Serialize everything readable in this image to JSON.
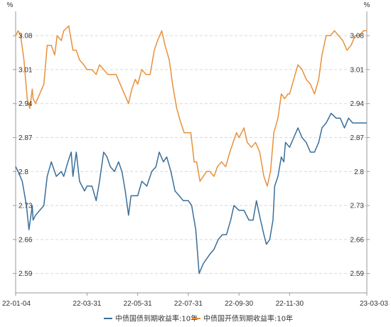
{
  "chart_data": {
    "type": "line",
    "y_unit_left": "%",
    "y_unit_right": "%",
    "ylim": [
      2.55,
      3.13
    ],
    "y_ticks": [
      2.59,
      2.66,
      2.73,
      2.8,
      2.87,
      2.94,
      3.01,
      3.08
    ],
    "y_tick_labels": [
      "2.59",
      "2.66",
      "2.73",
      "2.8",
      "2.87",
      "2.94",
      "3.01",
      "3.08"
    ],
    "x_tick_labels": [
      "22-01-04",
      "22-03-31",
      "22-05-31",
      "22-07-31",
      "22-09-30",
      "22-11-30",
      "23-03-03"
    ],
    "x_tick_dates": [
      "2022-01-04",
      "2022-03-31",
      "2022-05-31",
      "2022-07-31",
      "2022-09-30",
      "2022-11-30",
      "2023-03-03"
    ],
    "grid": true,
    "grid_axis": "y",
    "legend_position": "bottom",
    "series": [
      {
        "name": "中债国债到期收益率:10年",
        "color": "#3a6e9a",
        "points": [
          [
            "2022-01-04",
            2.81
          ],
          [
            "2022-01-07",
            2.8
          ],
          [
            "2022-01-12",
            2.78
          ],
          [
            "2022-01-17",
            2.73
          ],
          [
            "2022-01-20",
            2.68
          ],
          [
            "2022-01-24",
            2.73
          ],
          [
            "2022-01-25",
            2.7
          ],
          [
            "2022-01-28",
            2.71
          ],
          [
            "2022-02-07",
            2.73
          ],
          [
            "2022-02-11",
            2.79
          ],
          [
            "2022-02-16",
            2.82
          ],
          [
            "2022-02-22",
            2.79
          ],
          [
            "2022-02-28",
            2.8
          ],
          [
            "2022-03-03",
            2.79
          ],
          [
            "2022-03-08",
            2.82
          ],
          [
            "2022-03-12",
            2.84
          ],
          [
            "2022-03-14",
            2.79
          ],
          [
            "2022-03-18",
            2.84
          ],
          [
            "2022-03-22",
            2.78
          ],
          [
            "2022-03-28",
            2.76
          ],
          [
            "2022-03-31",
            2.77
          ],
          [
            "2022-04-06",
            2.77
          ],
          [
            "2022-04-11",
            2.74
          ],
          [
            "2022-04-15",
            2.78
          ],
          [
            "2022-04-20",
            2.84
          ],
          [
            "2022-04-24",
            2.83
          ],
          [
            "2022-04-28",
            2.81
          ],
          [
            "2022-05-03",
            2.8
          ],
          [
            "2022-05-08",
            2.82
          ],
          [
            "2022-05-12",
            2.8
          ],
          [
            "2022-05-16",
            2.76
          ],
          [
            "2022-05-20",
            2.71
          ],
          [
            "2022-05-23",
            2.75
          ],
          [
            "2022-05-27",
            2.75
          ],
          [
            "2022-05-31",
            2.75
          ],
          [
            "2022-06-05",
            2.78
          ],
          [
            "2022-06-11",
            2.77
          ],
          [
            "2022-06-17",
            2.8
          ],
          [
            "2022-06-22",
            2.81
          ],
          [
            "2022-06-26",
            2.84
          ],
          [
            "2022-07-01",
            2.82
          ],
          [
            "2022-07-05",
            2.83
          ],
          [
            "2022-07-10",
            2.8
          ],
          [
            "2022-07-15",
            2.76
          ],
          [
            "2022-07-20",
            2.75
          ],
          [
            "2022-07-25",
            2.74
          ],
          [
            "2022-07-31",
            2.74
          ],
          [
            "2022-08-04",
            2.73
          ],
          [
            "2022-08-09",
            2.68
          ],
          [
            "2022-08-13",
            2.59
          ],
          [
            "2022-08-18",
            2.61
          ],
          [
            "2022-08-22",
            2.62
          ],
          [
            "2022-08-26",
            2.63
          ],
          [
            "2022-08-31",
            2.64
          ],
          [
            "2022-09-05",
            2.66
          ],
          [
            "2022-09-10",
            2.67
          ],
          [
            "2022-09-15",
            2.67
          ],
          [
            "2022-09-20",
            2.7
          ],
          [
            "2022-09-24",
            2.73
          ],
          [
            "2022-09-30",
            2.72
          ],
          [
            "2022-10-06",
            2.72
          ],
          [
            "2022-10-12",
            2.7
          ],
          [
            "2022-10-17",
            2.7
          ],
          [
            "2022-10-21",
            2.74
          ],
          [
            "2022-10-26",
            2.7
          ],
          [
            "2022-10-30",
            2.67
          ],
          [
            "2022-11-02",
            2.65
          ],
          [
            "2022-11-06",
            2.66
          ],
          [
            "2022-11-10",
            2.7
          ],
          [
            "2022-11-12",
            2.77
          ],
          [
            "2022-11-16",
            2.79
          ],
          [
            "2022-11-20",
            2.83
          ],
          [
            "2022-11-23",
            2.82
          ],
          [
            "2022-11-25",
            2.86
          ],
          [
            "2022-11-30",
            2.85
          ],
          [
            "2022-12-05",
            2.87
          ],
          [
            "2022-12-10",
            2.89
          ],
          [
            "2022-12-15",
            2.87
          ],
          [
            "2022-12-20",
            2.86
          ],
          [
            "2022-12-25",
            2.84
          ],
          [
            "2022-12-30",
            2.84
          ],
          [
            "2023-01-04",
            2.86
          ],
          [
            "2023-01-08",
            2.89
          ],
          [
            "2023-01-13",
            2.9
          ],
          [
            "2023-01-19",
            2.92
          ],
          [
            "2023-01-25",
            2.91
          ],
          [
            "2023-01-30",
            2.91
          ],
          [
            "2023-02-04",
            2.89
          ],
          [
            "2023-02-09",
            2.91
          ],
          [
            "2023-02-14",
            2.9
          ],
          [
            "2023-02-20",
            2.9
          ],
          [
            "2023-02-24",
            2.9
          ],
          [
            "2023-03-01",
            2.9
          ],
          [
            "2023-03-03",
            2.9
          ]
        ]
      },
      {
        "name": "中债国开债到期收益率:10年",
        "color": "#e8913a",
        "points": [
          [
            "2022-01-04",
            3.08
          ],
          [
            "2022-01-07",
            3.09
          ],
          [
            "2022-01-10",
            3.08
          ],
          [
            "2022-01-14",
            3.03
          ],
          [
            "2022-01-18",
            2.95
          ],
          [
            "2022-01-21",
            2.93
          ],
          [
            "2022-01-24",
            2.97
          ],
          [
            "2022-01-25",
            2.95
          ],
          [
            "2022-01-28",
            2.94
          ],
          [
            "2022-02-07",
            2.98
          ],
          [
            "2022-02-11",
            3.06
          ],
          [
            "2022-02-16",
            3.06
          ],
          [
            "2022-02-20",
            3.04
          ],
          [
            "2022-02-23",
            3.08
          ],
          [
            "2022-02-28",
            3.07
          ],
          [
            "2022-03-03",
            3.09
          ],
          [
            "2022-03-09",
            3.1
          ],
          [
            "2022-03-14",
            3.05
          ],
          [
            "2022-03-18",
            3.05
          ],
          [
            "2022-03-22",
            3.03
          ],
          [
            "2022-03-27",
            3.02
          ],
          [
            "2022-03-31",
            3.01
          ],
          [
            "2022-04-06",
            3.01
          ],
          [
            "2022-04-11",
            3.0
          ],
          [
            "2022-04-15",
            3.02
          ],
          [
            "2022-04-20",
            3.01
          ],
          [
            "2022-04-25",
            3.0
          ],
          [
            "2022-04-30",
            3.0
          ],
          [
            "2022-05-05",
            3.0
          ],
          [
            "2022-05-10",
            2.98
          ],
          [
            "2022-05-15",
            2.96
          ],
          [
            "2022-05-20",
            2.94
          ],
          [
            "2022-05-24",
            2.97
          ],
          [
            "2022-05-28",
            2.99
          ],
          [
            "2022-05-31",
            2.98
          ],
          [
            "2022-06-05",
            3.01
          ],
          [
            "2022-06-10",
            3.0
          ],
          [
            "2022-06-15",
            3.0
          ],
          [
            "2022-06-20",
            3.05
          ],
          [
            "2022-06-24",
            3.07
          ],
          [
            "2022-06-29",
            3.09
          ],
          [
            "2022-07-03",
            3.06
          ],
          [
            "2022-07-08",
            3.03
          ],
          [
            "2022-07-12",
            2.98
          ],
          [
            "2022-07-17",
            2.93
          ],
          [
            "2022-07-22",
            2.9
          ],
          [
            "2022-07-26",
            2.88
          ],
          [
            "2022-07-31",
            2.88
          ],
          [
            "2022-08-03",
            2.88
          ],
          [
            "2022-08-07",
            2.82
          ],
          [
            "2022-08-10",
            2.82
          ],
          [
            "2022-08-14",
            2.78
          ],
          [
            "2022-08-18",
            2.79
          ],
          [
            "2022-08-22",
            2.8
          ],
          [
            "2022-08-26",
            2.8
          ],
          [
            "2022-08-31",
            2.79
          ],
          [
            "2022-09-04",
            2.81
          ],
          [
            "2022-09-09",
            2.82
          ],
          [
            "2022-09-14",
            2.81
          ],
          [
            "2022-09-19",
            2.84
          ],
          [
            "2022-09-23",
            2.86
          ],
          [
            "2022-09-27",
            2.88
          ],
          [
            "2022-09-30",
            2.87
          ],
          [
            "2022-10-06",
            2.89
          ],
          [
            "2022-10-10",
            2.86
          ],
          [
            "2022-10-15",
            2.85
          ],
          [
            "2022-10-20",
            2.86
          ],
          [
            "2022-10-25",
            2.84
          ],
          [
            "2022-10-30",
            2.79
          ],
          [
            "2022-11-03",
            2.77
          ],
          [
            "2022-11-07",
            2.8
          ],
          [
            "2022-11-11",
            2.88
          ],
          [
            "2022-11-16",
            2.91
          ],
          [
            "2022-11-20",
            2.96
          ],
          [
            "2022-11-24",
            2.95
          ],
          [
            "2022-11-28",
            2.96
          ],
          [
            "2022-11-30",
            2.96
          ],
          [
            "2022-12-05",
            2.99
          ],
          [
            "2022-12-10",
            3.02
          ],
          [
            "2022-12-15",
            3.01
          ],
          [
            "2022-12-20",
            2.99
          ],
          [
            "2022-12-25",
            2.98
          ],
          [
            "2022-12-30",
            2.96
          ],
          [
            "2023-01-04",
            2.99
          ],
          [
            "2023-01-08",
            3.04
          ],
          [
            "2023-01-13",
            3.08
          ],
          [
            "2023-01-18",
            3.08
          ],
          [
            "2023-01-23",
            3.09
          ],
          [
            "2023-01-28",
            3.08
          ],
          [
            "2023-02-02",
            3.07
          ],
          [
            "2023-02-07",
            3.05
          ],
          [
            "2023-02-12",
            3.06
          ],
          [
            "2023-02-17",
            3.08
          ],
          [
            "2023-02-22",
            3.08
          ],
          [
            "2023-02-27",
            3.09
          ],
          [
            "2023-03-03",
            3.09
          ]
        ]
      }
    ]
  }
}
